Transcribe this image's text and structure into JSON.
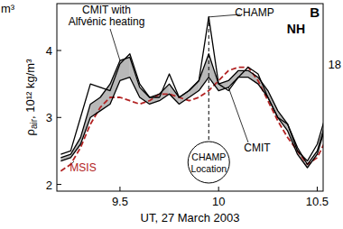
{
  "chart_data": {
    "type": "line",
    "panel_label": "B",
    "region_label": "NH",
    "x_label": "UT, 27 March 2003",
    "y_label": {
      "symbol": "ρ",
      "subscript": "air",
      "text": ", 10¹² kg/m³"
    },
    "x": [
      9.2,
      9.25,
      9.3,
      9.35,
      9.4,
      9.45,
      9.5,
      9.55,
      9.6,
      9.65,
      9.7,
      9.75,
      9.8,
      9.85,
      9.9,
      9.95,
      10.0,
      10.05,
      10.1,
      10.15,
      10.2,
      10.25,
      10.3,
      10.35,
      10.4,
      10.45,
      10.5,
      10.55
    ],
    "series": [
      {
        "name": "CHAMP",
        "color": "#000000",
        "line_style": "solid",
        "values": [
          2.45,
          2.5,
          3.0,
          3.5,
          3.45,
          3.4,
          3.8,
          3.95,
          3.5,
          3.3,
          3.3,
          3.65,
          3.3,
          3.4,
          3.55,
          4.5,
          3.5,
          3.4,
          3.6,
          3.75,
          3.65,
          3.3,
          3.0,
          2.9,
          2.5,
          2.35,
          2.6,
          3.1
        ]
      },
      {
        "name": "CMIT",
        "color": "#000000",
        "line_style": "solid",
        "values": [
          2.35,
          2.4,
          2.6,
          3.0,
          3.1,
          3.2,
          3.55,
          3.6,
          3.3,
          3.2,
          3.25,
          3.35,
          3.2,
          3.3,
          3.4,
          3.6,
          3.4,
          3.45,
          3.6,
          3.6,
          3.5,
          3.3,
          3.0,
          2.8,
          2.45,
          2.25,
          2.45,
          2.95
        ]
      },
      {
        "name": "CMIT with Alfvénic heating",
        "color": "#000000",
        "line_style": "solid",
        "values": [
          2.4,
          2.45,
          2.7,
          3.2,
          3.3,
          3.5,
          3.85,
          3.9,
          3.45,
          3.3,
          3.35,
          3.5,
          3.3,
          3.4,
          3.55,
          3.95,
          3.5,
          3.55,
          3.7,
          3.7,
          3.6,
          3.4,
          3.1,
          2.9,
          2.55,
          2.3,
          2.5,
          3.0
        ]
      },
      {
        "name": "MSIS",
        "color": "#b22222",
        "line_style": "dashed",
        "values": [
          2.2,
          2.3,
          2.55,
          2.9,
          3.15,
          3.3,
          3.3,
          3.25,
          3.2,
          3.25,
          3.35,
          3.35,
          3.3,
          3.25,
          3.3,
          3.4,
          3.55,
          3.7,
          3.75,
          3.75,
          3.55,
          3.25,
          2.95,
          2.7,
          2.5,
          2.3,
          2.4,
          2.7
        ]
      }
    ],
    "annotations": [
      {
        "text": [
          "CHAMP",
          "Location"
        ],
        "x": 9.95
      }
    ],
    "edge_texts": [
      "m³",
      "18"
    ],
    "xlim": [
      9.18,
      10.53
    ],
    "xticks": [
      9.5,
      10,
      10.5
    ],
    "ylim": [
      1.9,
      4.7
    ],
    "yticks": [
      2,
      3,
      4
    ],
    "grid": false
  }
}
